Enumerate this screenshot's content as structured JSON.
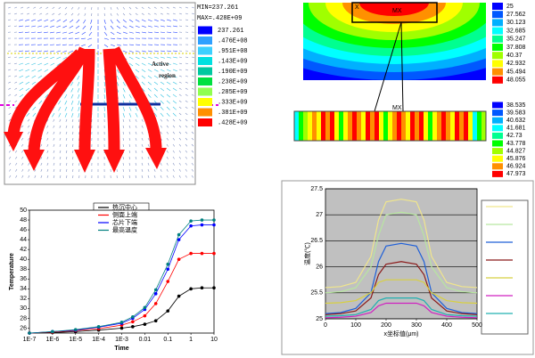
{
  "vector_panel": {
    "min_label": "MIN=237.261",
    "max_label": "MAX=.428E+09",
    "annotation": "Active region",
    "legend": [
      "237.261",
      ".476E+08",
      ".951E+08",
      ".143E+09",
      ".190E+09",
      ".238E+09",
      ".285E+09",
      ".333E+09",
      ".381E+09",
      ".428E+09"
    ],
    "colors": [
      "#0000ff",
      "#2fa0ff",
      "#3cd0ff",
      "#00e0e0",
      "#00c8a0",
      "#00e040",
      "#90ff50",
      "#ffff00",
      "#ff9000",
      "#ff0000"
    ]
  },
  "contour_panel": {
    "labels": [
      "MX",
      "MX",
      "X"
    ],
    "legend": [
      "25",
      "27.562",
      "30.123",
      "32.685",
      "35.247",
      "37.808",
      "40.37",
      "42.932",
      "45.494",
      "48.055"
    ],
    "strip_legend": [
      "38.535",
      "39.583",
      "40.632",
      "41.681",
      "42.73",
      "43.778",
      "44.827",
      "45.876",
      "46.924",
      "47.973"
    ],
    "colors": [
      "#0000ff",
      "#0058ff",
      "#00b0ff",
      "#00ffff",
      "#00ff90",
      "#00ff00",
      "#a0ff00",
      "#ffff00",
      "#ff9000",
      "#ff0000"
    ]
  },
  "chart_data": [
    {
      "type": "line",
      "xscale": "log",
      "xlabel": "Time",
      "ylabel": "Temperature",
      "x": [
        1e-07,
        1e-06,
        1e-05,
        0.0001,
        0.001,
        0.003,
        0.01,
        0.03,
        0.1,
        0.3,
        1,
        3,
        10
      ],
      "xlim": [
        1e-07,
        10
      ],
      "xticks": [
        {
          "value": 1e-07,
          "label": "1E-7"
        },
        {
          "value": 1e-06,
          "label": "1E-6"
        },
        {
          "value": 1e-05,
          "label": "1E-5"
        },
        {
          "value": 0.0001,
          "label": "1E-4"
        },
        {
          "value": 0.001,
          "label": "1E-3"
        },
        0.01,
        0.1,
        1,
        10
      ],
      "ylim": [
        25,
        50
      ],
      "yticks": [
        26,
        28,
        30,
        32,
        34,
        36,
        38,
        40,
        42,
        44,
        46,
        48,
        50
      ],
      "grid": false,
      "background": "#ffffff",
      "series": [
        {
          "name": "热沉中心",
          "color": "#000000",
          "values": [
            25,
            25.1,
            25.3,
            25.6,
            26,
            26.3,
            26.8,
            27.5,
            29.5,
            32.5,
            34,
            34.2,
            34.2
          ]
        },
        {
          "name": "侧面上端",
          "color": "#ff0000",
          "values": [
            25,
            25.2,
            25.5,
            25.9,
            26.6,
            27.3,
            28.5,
            31,
            35.5,
            40,
            41.2,
            41.2,
            41.2
          ]
        },
        {
          "name": "芯片下端",
          "color": "#0000ff",
          "values": [
            25,
            25.3,
            25.6,
            26.2,
            27,
            28,
            29.8,
            33,
            38,
            44,
            46.8,
            47,
            47
          ]
        },
        {
          "name": "最高温度",
          "color": "#008080",
          "values": [
            25,
            25.3,
            25.7,
            26.3,
            27.2,
            28.3,
            30.2,
            33.8,
            39,
            45,
            47.8,
            48,
            48
          ]
        }
      ]
    },
    {
      "type": "line",
      "xscale": "linear",
      "xlabel": "x坐标值(μm)",
      "ylabel": "温度(℃)",
      "x": [
        0,
        50,
        100,
        150,
        175,
        200,
        250,
        300,
        325,
        350,
        400,
        450,
        500
      ],
      "xlim": [
        0,
        500
      ],
      "xticks": [
        0,
        100,
        200,
        300,
        400,
        500
      ],
      "ylim": [
        25,
        27.5
      ],
      "yticks": [
        25,
        25.5,
        26,
        26.5,
        27,
        27.5
      ],
      "grid": true,
      "background": "#c0c0c0",
      "series": [
        {
          "color": "#f0e68c",
          "values": [
            25.6,
            25.62,
            25.7,
            26.2,
            26.9,
            27.25,
            27.3,
            27.25,
            26.9,
            26.2,
            25.7,
            25.62,
            25.6
          ]
        },
        {
          "color": "#b8e6a0",
          "values": [
            25.5,
            25.52,
            25.6,
            26.0,
            26.6,
            27.0,
            27.05,
            27.0,
            26.6,
            26.0,
            25.6,
            25.52,
            25.5
          ]
        },
        {
          "color": "#1e5fd8",
          "values": [
            25.1,
            25.12,
            25.2,
            25.5,
            26.1,
            26.4,
            26.45,
            26.4,
            26.1,
            25.5,
            25.2,
            25.12,
            25.1
          ]
        },
        {
          "color": "#8b1a1a",
          "values": [
            25.08,
            25.1,
            25.15,
            25.4,
            25.85,
            26.05,
            26.1,
            26.05,
            25.85,
            25.4,
            25.15,
            25.1,
            25.08
          ]
        },
        {
          "color": "#d8d040",
          "values": [
            25.3,
            25.31,
            25.35,
            25.5,
            25.7,
            25.75,
            25.75,
            25.75,
            25.7,
            25.5,
            25.35,
            25.31,
            25.3
          ]
        },
        {
          "color": "#d020c0",
          "values": [
            25.02,
            25.03,
            25.05,
            25.12,
            25.25,
            25.3,
            25.3,
            25.3,
            25.25,
            25.12,
            25.05,
            25.03,
            25.02
          ]
        },
        {
          "color": "#20b0b0",
          "values": [
            25.05,
            25.06,
            25.08,
            25.18,
            25.35,
            25.4,
            25.4,
            25.4,
            25.35,
            25.18,
            25.08,
            25.06,
            25.05
          ]
        }
      ]
    }
  ]
}
